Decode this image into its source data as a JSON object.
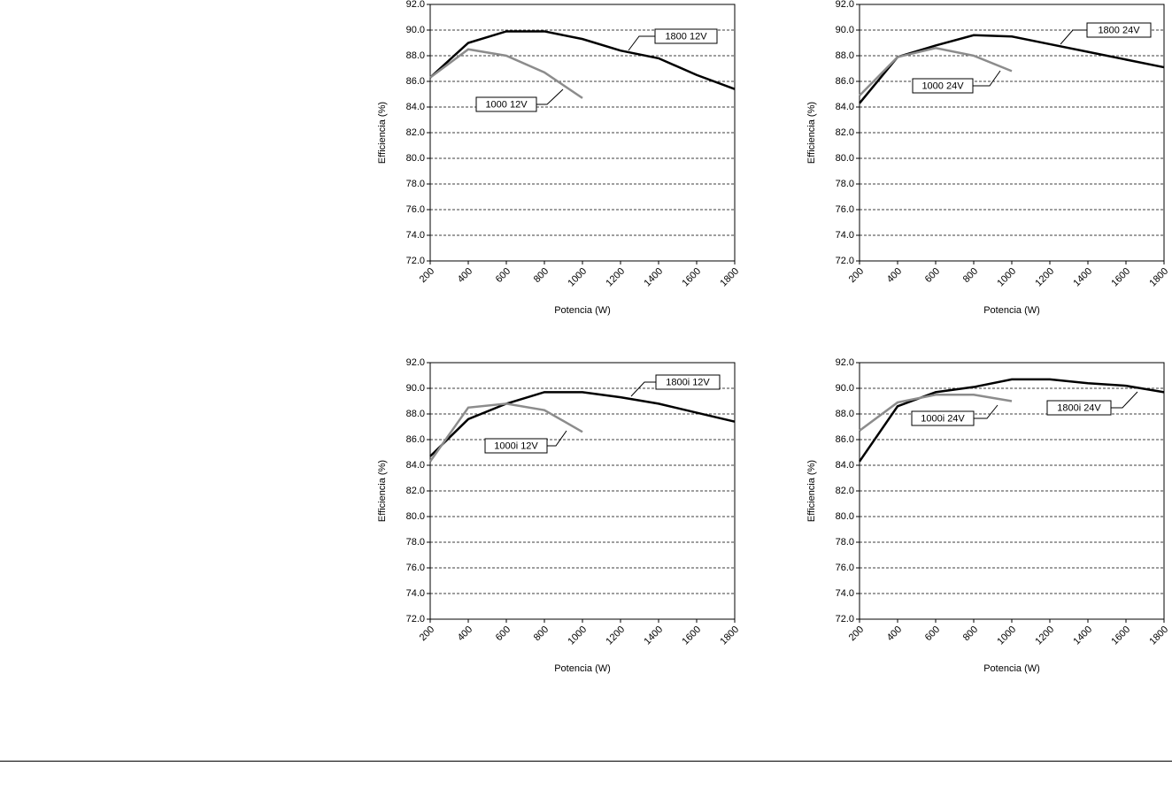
{
  "chart_data": [
    {
      "type": "line",
      "x_label": "Potencia (W)",
      "y_label": "Efficiencia (%)",
      "xlim": [
        200,
        1800
      ],
      "xticks": [
        200,
        400,
        600,
        800,
        1000,
        1200,
        1400,
        1600,
        1800
      ],
      "ylim": [
        72,
        92
      ],
      "yticks": [
        {
          "value": 72,
          "label": "72.0"
        },
        {
          "value": 74,
          "label": "74.0"
        },
        {
          "value": 76,
          "label": "76.0"
        },
        {
          "value": 78,
          "label": "78.0"
        },
        {
          "value": 80,
          "label": "80.0"
        },
        {
          "value": 82,
          "label": "82.0"
        },
        {
          "value": 84,
          "label": "84.0"
        },
        {
          "value": 86,
          "label": "86.0"
        },
        {
          "value": 88,
          "label": "88.0"
        },
        {
          "value": 90,
          "label": "90.0"
        },
        {
          "value": 92,
          "label": "92.0"
        }
      ],
      "grid": true,
      "series": [
        {
          "name": "1800 12V",
          "color": "#000000",
          "x": [
            200,
            400,
            600,
            800,
            1000,
            1200,
            1400,
            1600,
            1800
          ],
          "values": [
            86.3,
            89.0,
            89.9,
            89.9,
            89.3,
            88.4,
            87.8,
            86.5,
            85.4
          ]
        },
        {
          "name": "1000 12V",
          "color": "#8c8c8c",
          "x": [
            200,
            400,
            600,
            800,
            1000
          ],
          "values": [
            86.3,
            88.5,
            88.0,
            86.7,
            84.7
          ]
        }
      ]
    },
    {
      "type": "line",
      "x_label": "Potencia (W)",
      "y_label": "Efficiencia (%)",
      "xlim": [
        200,
        1800
      ],
      "xticks": [
        200,
        400,
        600,
        800,
        1000,
        1200,
        1400,
        1600,
        1800
      ],
      "ylim": [
        72,
        92
      ],
      "yticks": [
        {
          "value": 72,
          "label": "72.0"
        },
        {
          "value": 74,
          "label": "74.0"
        },
        {
          "value": 76,
          "label": "76.0"
        },
        {
          "value": 78,
          "label": "78.0"
        },
        {
          "value": 80,
          "label": "80.0"
        },
        {
          "value": 82,
          "label": "82.0"
        },
        {
          "value": 84,
          "label": "84.0"
        },
        {
          "value": 86,
          "label": "86.0"
        },
        {
          "value": 88,
          "label": "88.0"
        },
        {
          "value": 90,
          "label": "90.0"
        },
        {
          "value": 92,
          "label": "92.0"
        }
      ],
      "grid": true,
      "series": [
        {
          "name": "1800 24V",
          "color": "#000000",
          "x": [
            200,
            400,
            600,
            800,
            1000,
            1200,
            1400,
            1600,
            1800
          ],
          "values": [
            84.3,
            87.9,
            88.8,
            89.6,
            89.5,
            88.9,
            88.3,
            87.7,
            87.1
          ]
        },
        {
          "name": "1000 24V",
          "color": "#8c8c8c",
          "x": [
            200,
            400,
            600,
            800,
            1000
          ],
          "values": [
            84.9,
            87.9,
            88.6,
            88.0,
            86.8
          ]
        }
      ]
    },
    {
      "type": "line",
      "x_label": "Potencia (W)",
      "y_label": "Efficiencia (%)",
      "xlim": [
        200,
        1800
      ],
      "xticks": [
        200,
        400,
        600,
        800,
        1000,
        1200,
        1400,
        1600,
        1800
      ],
      "ylim": [
        72,
        92
      ],
      "yticks": [
        {
          "value": 72,
          "label": "72.0"
        },
        {
          "value": 74,
          "label": "74.0"
        },
        {
          "value": 76,
          "label": "76.0"
        },
        {
          "value": 78,
          "label": "78.0"
        },
        {
          "value": 80,
          "label": "80.0"
        },
        {
          "value": 82,
          "label": "82.0"
        },
        {
          "value": 84,
          "label": "84.0"
        },
        {
          "value": 86,
          "label": "86.0"
        },
        {
          "value": 88,
          "label": "88.0"
        },
        {
          "value": 90,
          "label": "90.0"
        },
        {
          "value": 92,
          "label": "92.0"
        }
      ],
      "grid": true,
      "series": [
        {
          "name": "1800i 12V",
          "color": "#000000",
          "x": [
            200,
            400,
            600,
            800,
            1000,
            1200,
            1400,
            1600,
            1800
          ],
          "values": [
            84.7,
            87.6,
            88.8,
            89.7,
            89.7,
            89.3,
            88.8,
            88.1,
            87.4
          ]
        },
        {
          "name": "1000i 12V",
          "color": "#8c8c8c",
          "x": [
            200,
            400,
            600,
            800,
            1000
          ],
          "values": [
            84.3,
            88.5,
            88.8,
            88.3,
            86.6
          ]
        }
      ]
    },
    {
      "type": "line",
      "x_label": "Potencia (W)",
      "y_label": "Efficiencia (%)",
      "xlim": [
        200,
        1800
      ],
      "xticks": [
        200,
        400,
        600,
        800,
        1000,
        1200,
        1400,
        1600,
        1800
      ],
      "ylim": [
        72,
        92
      ],
      "yticks": [
        {
          "value": 72,
          "label": "72.0"
        },
        {
          "value": 74,
          "label": "74.0"
        },
        {
          "value": 76,
          "label": "76.0"
        },
        {
          "value": 78,
          "label": "78.0"
        },
        {
          "value": 80,
          "label": "80.0"
        },
        {
          "value": 82,
          "label": "82.0"
        },
        {
          "value": 84,
          "label": "84.0"
        },
        {
          "value": 86,
          "label": "86.0"
        },
        {
          "value": 88,
          "label": "88.0"
        },
        {
          "value": 90,
          "label": "90.0"
        },
        {
          "value": 92,
          "label": "92.0"
        }
      ],
      "grid": true,
      "series": [
        {
          "name": "1800i 24V",
          "color": "#000000",
          "x": [
            200,
            400,
            600,
            800,
            1000,
            1200,
            1400,
            1600,
            1800
          ],
          "values": [
            84.3,
            88.6,
            89.7,
            90.1,
            90.7,
            90.7,
            90.4,
            90.2,
            89.7
          ]
        },
        {
          "name": "1000i 24V",
          "color": "#8c8c8c",
          "x": [
            200,
            400,
            600,
            800,
            1000
          ],
          "values": [
            86.7,
            88.9,
            89.5,
            89.5,
            89.0
          ]
        }
      ]
    }
  ]
}
